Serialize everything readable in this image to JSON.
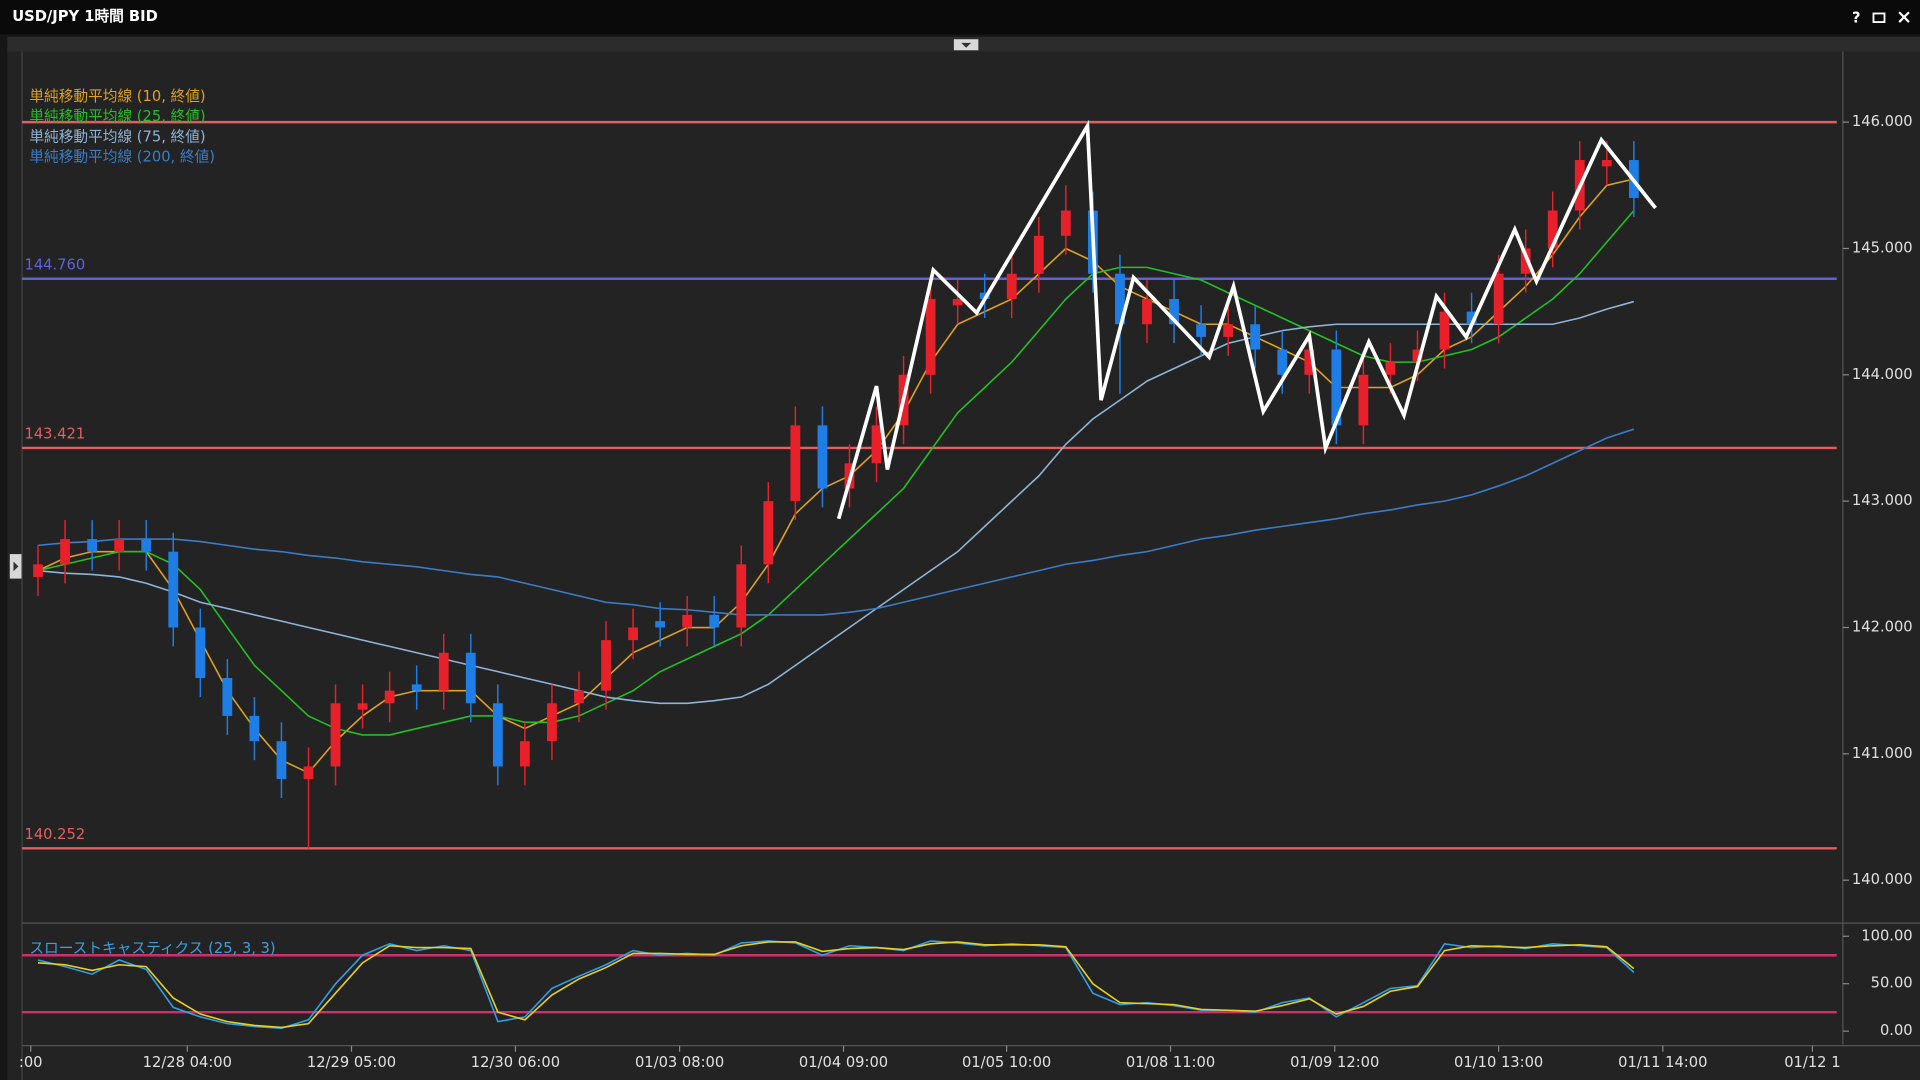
{
  "window": {
    "title": "USD/JPY 1時間 BID",
    "help": "?"
  },
  "chart_data": [
    {
      "type": "candlestick",
      "xlim": [
        -0.5,
        66.5
      ],
      "xticks": [
        {
          "value": -0.27,
          "label": ":00"
        },
        {
          "value": 5.52,
          "label": "12/28 04:00"
        },
        {
          "value": 11.59,
          "label": "12/29 05:00"
        },
        {
          "value": 17.65,
          "label": "12/30 06:00"
        },
        {
          "value": 23.72,
          "label": "01/03 08:00"
        },
        {
          "value": 29.78,
          "label": "01/04 09:00"
        },
        {
          "value": 35.81,
          "label": "01/05 10:00"
        },
        {
          "value": 41.87,
          "label": "01/08 11:00"
        },
        {
          "value": 47.94,
          "label": "01/09 12:00"
        },
        {
          "value": 54.0,
          "label": "01/10 13:00"
        },
        {
          "value": 60.07,
          "label": "01/11 14:00"
        },
        {
          "value": 65.6,
          "label": "01/12 1"
        }
      ],
      "ylim": [
        139.67,
        146.53
      ],
      "yticks": [
        {
          "value": 140,
          "label": "140.000"
        },
        {
          "value": 141,
          "label": "141.000"
        },
        {
          "value": 142,
          "label": "142.000"
        },
        {
          "value": 143,
          "label": "143.000"
        },
        {
          "value": 144,
          "label": "144.000"
        },
        {
          "value": 145,
          "label": "145.000"
        },
        {
          "value": 146,
          "label": "146.000"
        }
      ],
      "up_color": "#e8202a",
      "down_color": "#1e7ee6",
      "open": [
        142.4,
        142.5,
        142.7,
        142.6,
        142.7,
        142.6,
        142.0,
        141.6,
        141.3,
        141.1,
        140.8,
        140.9,
        141.35,
        141.4,
        141.55,
        141.5,
        141.8,
        141.4,
        140.9,
        141.1,
        141.4,
        141.5,
        141.9,
        142.05,
        142.0,
        142.1,
        142.0,
        142.5,
        143.0,
        143.6,
        143.1,
        143.3,
        143.6,
        144.0,
        144.55,
        144.65,
        144.6,
        144.8,
        145.1,
        145.3,
        144.8,
        144.4,
        144.6,
        144.4,
        144.3,
        144.4,
        144.2,
        144.0,
        144.2,
        143.6,
        144.0,
        144.1,
        144.2,
        144.5,
        144.4,
        144.8,
        145.0,
        145.3,
        145.65,
        145.7
      ],
      "high": [
        142.65,
        142.85,
        142.85,
        142.85,
        142.85,
        142.75,
        142.15,
        141.75,
        141.45,
        141.25,
        141.05,
        141.55,
        141.55,
        141.65,
        141.7,
        141.95,
        141.95,
        141.55,
        141.25,
        141.55,
        141.65,
        142.05,
        142.15,
        142.2,
        142.25,
        142.25,
        142.65,
        143.15,
        143.75,
        143.75,
        143.45,
        143.75,
        144.15,
        144.75,
        144.75,
        144.8,
        144.95,
        145.25,
        145.5,
        145.45,
        144.95,
        144.75,
        144.75,
        144.55,
        144.55,
        144.55,
        144.35,
        144.35,
        144.35,
        144.15,
        144.25,
        144.35,
        144.65,
        144.65,
        144.95,
        145.15,
        145.45,
        145.85,
        145.85,
        145.85
      ],
      "low": [
        142.25,
        142.35,
        142.45,
        142.45,
        142.45,
        141.85,
        141.45,
        141.15,
        140.95,
        140.65,
        140.25,
        140.75,
        141.2,
        141.25,
        141.35,
        141.35,
        141.25,
        140.75,
        140.75,
        140.95,
        141.25,
        141.35,
        141.75,
        141.85,
        141.85,
        141.85,
        141.85,
        142.35,
        142.85,
        142.95,
        142.95,
        143.15,
        143.45,
        143.85,
        144.4,
        144.45,
        144.45,
        144.65,
        144.95,
        144.65,
        143.85,
        144.25,
        144.25,
        144.15,
        144.15,
        144.05,
        143.85,
        143.85,
        143.45,
        143.45,
        143.85,
        143.95,
        144.05,
        144.25,
        144.25,
        144.65,
        144.85,
        145.15,
        145.5,
        145.25
      ],
      "close": [
        142.5,
        142.7,
        142.6,
        142.7,
        142.6,
        142.0,
        141.6,
        141.3,
        141.1,
        140.8,
        140.9,
        141.4,
        141.4,
        141.5,
        141.5,
        141.8,
        141.4,
        140.9,
        141.1,
        141.4,
        141.5,
        141.9,
        142.0,
        142.0,
        142.1,
        142.0,
        142.5,
        143.0,
        143.6,
        143.1,
        143.3,
        143.6,
        144.0,
        144.6,
        144.6,
        144.6,
        144.8,
        145.1,
        145.3,
        144.8,
        144.4,
        144.6,
        144.4,
        144.3,
        144.4,
        144.2,
        144.0,
        144.2,
        143.6,
        144.0,
        144.1,
        144.2,
        144.5,
        144.4,
        144.8,
        145.0,
        145.3,
        145.7,
        145.7,
        145.4
      ],
      "series": [
        {
          "name": "単純移動平均線 (10, 終値)",
          "color": "#e0a020",
          "values": [
            142.45,
            142.55,
            142.6,
            142.6,
            142.6,
            142.3,
            141.9,
            141.5,
            141.2,
            140.95,
            140.85,
            141.1,
            141.3,
            141.45,
            141.5,
            141.5,
            141.5,
            141.3,
            141.2,
            141.3,
            141.4,
            141.6,
            141.8,
            141.9,
            142.0,
            142.0,
            142.2,
            142.5,
            142.9,
            143.1,
            143.2,
            143.4,
            143.7,
            144.1,
            144.4,
            144.5,
            144.6,
            144.8,
            145.0,
            144.9,
            144.7,
            144.6,
            144.5,
            144.4,
            144.4,
            144.3,
            144.2,
            144.1,
            143.9,
            143.9,
            143.9,
            144.0,
            144.2,
            144.3,
            144.5,
            144.7,
            144.95,
            145.25,
            145.5,
            145.55
          ]
        },
        {
          "name": "単純移動平均線 (25, 終値)",
          "color": "#22c022",
          "values": [
            142.45,
            142.5,
            142.55,
            142.6,
            142.6,
            142.5,
            142.3,
            142.0,
            141.7,
            141.5,
            141.3,
            141.2,
            141.15,
            141.15,
            141.2,
            141.25,
            141.3,
            141.3,
            141.25,
            141.25,
            141.3,
            141.4,
            141.5,
            141.65,
            141.75,
            141.85,
            141.95,
            142.1,
            142.3,
            142.5,
            142.7,
            142.9,
            143.1,
            143.4,
            143.7,
            143.9,
            144.1,
            144.35,
            144.6,
            144.8,
            144.85,
            144.85,
            144.8,
            144.75,
            144.65,
            144.55,
            144.45,
            144.35,
            144.25,
            144.15,
            144.1,
            144.1,
            144.15,
            144.2,
            144.3,
            144.45,
            144.6,
            144.8,
            145.05,
            145.3
          ]
        },
        {
          "name": "単純移動平均線 (75, 終値)",
          "color": "#8fb4d8",
          "values": [
            142.45,
            142.43,
            142.42,
            142.4,
            142.35,
            142.28,
            142.2,
            142.15,
            142.1,
            142.05,
            142.0,
            141.95,
            141.9,
            141.85,
            141.8,
            141.75,
            141.7,
            141.65,
            141.6,
            141.55,
            141.5,
            141.45,
            141.42,
            141.4,
            141.4,
            141.42,
            141.45,
            141.55,
            141.7,
            141.85,
            142.0,
            142.15,
            142.3,
            142.45,
            142.6,
            142.8,
            143.0,
            143.2,
            143.45,
            143.65,
            143.8,
            143.95,
            144.05,
            144.15,
            144.25,
            144.3,
            144.35,
            144.38,
            144.4,
            144.4,
            144.4,
            144.4,
            144.4,
            144.4,
            144.4,
            144.4,
            144.4,
            144.45,
            144.52,
            144.58
          ]
        },
        {
          "name": "単純移動平均線 (200, 終値)",
          "color": "#3a7cc8",
          "values": [
            142.65,
            142.67,
            142.68,
            142.7,
            142.7,
            142.7,
            142.68,
            142.65,
            142.62,
            142.6,
            142.57,
            142.55,
            142.52,
            142.5,
            142.48,
            142.45,
            142.42,
            142.4,
            142.35,
            142.3,
            142.25,
            142.2,
            142.18,
            142.15,
            142.14,
            142.12,
            142.1,
            142.1,
            142.1,
            142.1,
            142.12,
            142.15,
            142.2,
            142.25,
            142.3,
            142.35,
            142.4,
            142.45,
            142.5,
            142.53,
            142.57,
            142.6,
            142.65,
            142.7,
            142.73,
            142.77,
            142.8,
            142.83,
            142.86,
            142.9,
            142.93,
            142.97,
            143.0,
            143.05,
            143.12,
            143.2,
            143.3,
            143.4,
            143.5,
            143.57
          ]
        }
      ],
      "levels": [
        {
          "value": 146.0,
          "color": "#e06060"
        },
        {
          "value": 144.76,
          "label": "144.760",
          "color": "#6060e0"
        },
        {
          "value": 143.421,
          "label": "143.421",
          "color": "#e06060"
        },
        {
          "value": 140.252,
          "label": "140.252",
          "color": "#e06060"
        }
      ],
      "trendline": {
        "color": "#ffffff",
        "x": [
          29.6,
          31.0,
          31.4,
          33.1,
          34.7,
          38.8,
          39.3,
          40.5,
          43.3,
          44.2,
          45.3,
          47.0,
          47.6,
          49.2,
          50.5,
          51.7,
          52.8,
          54.6,
          55.4,
          57.8,
          59.8
        ],
        "y": [
          142.86,
          143.91,
          143.25,
          144.83,
          144.49,
          145.97,
          143.8,
          144.77,
          144.14,
          144.7,
          143.71,
          144.31,
          143.42,
          144.26,
          143.68,
          144.62,
          144.3,
          145.15,
          144.74,
          145.86,
          145.32
        ]
      }
    },
    {
      "type": "line",
      "title": "スローストキャスティクス (25, 3, 3)",
      "title_color": "#3aa0e0",
      "xlim": [
        -0.5,
        66.5
      ],
      "ylim": [
        -14,
        110
      ],
      "yticks": [
        {
          "value": 0,
          "label": "0.00"
        },
        {
          "value": 50,
          "label": "50.00"
        },
        {
          "value": 100,
          "label": "100.00"
        }
      ],
      "levels": [
        {
          "value": 80,
          "color": "#d0306a"
        },
        {
          "value": 20,
          "color": "#d0306a"
        }
      ],
      "series": [
        {
          "color": "#2f9ee8",
          "values": [
            75,
            68,
            60,
            75,
            65,
            25,
            15,
            8,
            5,
            3,
            12,
            50,
            80,
            92,
            85,
            90,
            85,
            10,
            15,
            45,
            58,
            70,
            85,
            80,
            82,
            80,
            93,
            95,
            93,
            80,
            90,
            88,
            85,
            95,
            93,
            90,
            92,
            90,
            88,
            40,
            28,
            30,
            27,
            22,
            22,
            20,
            30,
            35,
            15,
            30,
            45,
            48,
            92,
            88,
            90,
            87,
            92,
            90,
            88,
            62
          ]
        },
        {
          "color": "#e8d020",
          "values": [
            72,
            70,
            64,
            70,
            68,
            35,
            18,
            10,
            6,
            4,
            8,
            40,
            72,
            90,
            88,
            88,
            87,
            20,
            12,
            38,
            55,
            67,
            82,
            82,
            81,
            81,
            90,
            94,
            94,
            84,
            87,
            88,
            86,
            92,
            94,
            91,
            91,
            91,
            89,
            50,
            30,
            29,
            28,
            23,
            22,
            21,
            27,
            34,
            18,
            26,
            42,
            47,
            85,
            90,
            89,
            88,
            90,
            91,
            89,
            66
          ]
        }
      ]
    }
  ]
}
